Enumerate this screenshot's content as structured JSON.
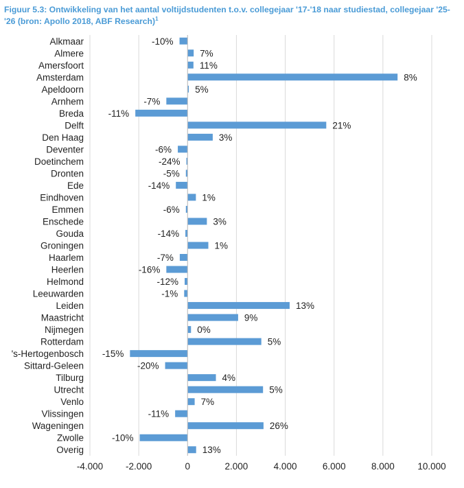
{
  "figure": {
    "title": "Figuur 5.3: Ontwikkeling van het aantal voltijdstudenten t.o.v. collegejaar '17-'18 naar studiestad, collegejaar '25-'26 (bron: Apollo 2018, ABF Research)",
    "footnote_mark": "1"
  },
  "chart_data": {
    "type": "bar",
    "orientation": "horizontal",
    "title": "Figuur 5.3: Ontwikkeling van het aantal voltijdstudenten t.o.v. collegejaar '17-'18 naar studiestad, collegejaar '25-'26 (bron: Apollo 2018, ABF Research)",
    "xlabel": "",
    "ylabel": "",
    "xlim": [
      -4000,
      10000
    ],
    "xticks": [
      -4000,
      -2000,
      0,
      2000,
      4000,
      6000,
      8000,
      10000
    ],
    "xtick_labels": [
      "-4.000",
      "-2.000",
      "0",
      "2.000",
      "4.000",
      "6.000",
      "8.000",
      "10.000"
    ],
    "grid": "vertical",
    "legend": "none",
    "bar_color": "#5b9bd5",
    "grid_color": "#d9d9d9",
    "categories": [
      "Alkmaar",
      "Almere",
      "Amersfoort",
      "Amsterdam",
      "Apeldoorn",
      "Arnhem",
      "Breda",
      "Delft",
      "Den Haag",
      "Deventer",
      "Doetinchem",
      "Dronten",
      "Ede",
      "Eindhoven",
      "Emmen",
      "Enschede",
      "Gouda",
      "Groningen",
      "Haarlem",
      "Heerlen",
      "Helmond",
      "Leeuwarden",
      "Leiden",
      "Maastricht",
      "Nijmegen",
      "Rotterdam",
      "'s-Hertogenbosch",
      "Sittard-Geleen",
      "Tilburg",
      "Utrecht",
      "Venlo",
      "Vlissingen",
      "Wageningen",
      "Zwolle",
      "Overig"
    ],
    "values": [
      -330,
      250,
      240,
      8600,
      50,
      -870,
      -2140,
      5680,
      1030,
      -400,
      -50,
      -70,
      -480,
      340,
      -70,
      790,
      -90,
      850,
      -320,
      -870,
      -120,
      -140,
      4180,
      2070,
      140,
      3020,
      -2360,
      -920,
      1160,
      3090,
      290,
      -510,
      3110,
      -1960,
      350
    ],
    "data_labels": [
      "-10%",
      "7%",
      "11%",
      "8%",
      "5%",
      "-7%",
      "-11%",
      "21%",
      "3%",
      "-6%",
      "-24%",
      "-5%",
      "-14%",
      "1%",
      "-6%",
      "3%",
      "-14%",
      "1%",
      "-7%",
      "-16%",
      "-12%",
      "-1%",
      "13%",
      "9%",
      "0%",
      "5%",
      "-15%",
      "-20%",
      "4%",
      "5%",
      "7%",
      "-11%",
      "26%",
      "-10%",
      "13%"
    ]
  }
}
